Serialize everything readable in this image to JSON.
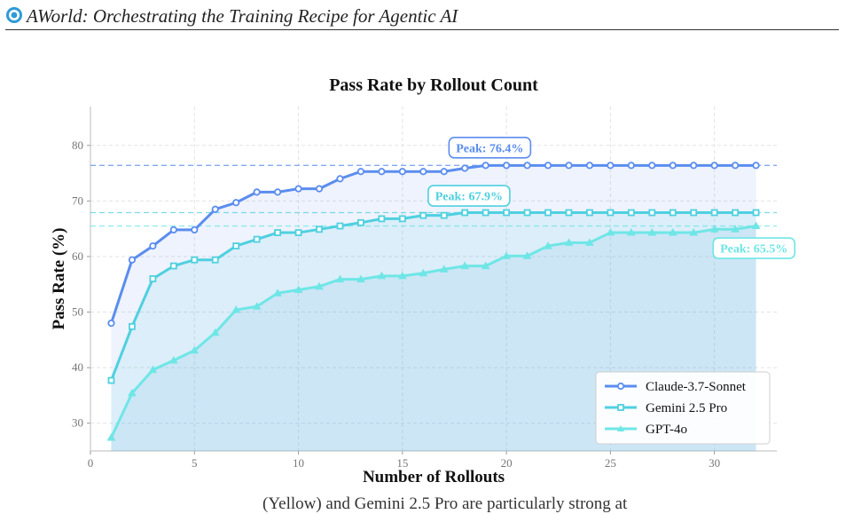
{
  "header": {
    "title": "AWorld: Orchestrating the Training Recipe for Agentic AI"
  },
  "footer_fragment": "(Yellow) and Gemini 2.5 Pro are particularly strong at",
  "colors": {
    "claude": "#5b8def",
    "gemini": "#4fd0e0",
    "gpt": "#6fe6e6",
    "logo": "#2f9bd6"
  },
  "chart_data": {
    "type": "line",
    "title": "Pass Rate by Rollout Count",
    "xlabel": "Number of Rollouts",
    "ylabel": "Pass Rate (%)",
    "xlim": [
      0,
      33
    ],
    "ylim": [
      25,
      87
    ],
    "xticks": [
      0,
      5,
      10,
      15,
      20,
      25,
      30
    ],
    "yticks": [
      30,
      40,
      50,
      60,
      70,
      80
    ],
    "grid": true,
    "legend": "bottom-right",
    "x": [
      1,
      2,
      3,
      4,
      5,
      6,
      7,
      8,
      9,
      10,
      11,
      12,
      13,
      14,
      15,
      16,
      17,
      18,
      19,
      20,
      21,
      22,
      23,
      24,
      25,
      26,
      27,
      28,
      29,
      30,
      31,
      32
    ],
    "series": [
      {
        "name": "Claude-3.7-Sonnet",
        "marker": "circle",
        "color": "#5b8def",
        "values": [
          48.0,
          59.4,
          61.9,
          64.8,
          64.8,
          68.5,
          69.7,
          71.6,
          71.6,
          72.2,
          72.2,
          74.0,
          75.3,
          75.3,
          75.3,
          75.3,
          75.3,
          75.9,
          76.4,
          76.4,
          76.4,
          76.4,
          76.4,
          76.4,
          76.4,
          76.4,
          76.4,
          76.4,
          76.4,
          76.4,
          76.4,
          76.4
        ],
        "peak": 76.4,
        "peak_label": "Peak: 76.4%"
      },
      {
        "name": "Gemini 2.5 Pro",
        "marker": "square",
        "color": "#4fd0e0",
        "values": [
          37.7,
          47.4,
          56.0,
          58.3,
          59.4,
          59.4,
          61.9,
          63.1,
          64.3,
          64.3,
          64.9,
          65.5,
          66.1,
          66.8,
          66.8,
          67.4,
          67.4,
          67.9,
          67.9,
          67.9,
          67.9,
          67.9,
          67.9,
          67.9,
          67.9,
          67.9,
          67.9,
          67.9,
          67.9,
          67.9,
          67.9,
          67.9
        ],
        "peak": 67.9,
        "peak_label": "Peak: 67.9%"
      },
      {
        "name": "GPT-4o",
        "marker": "triangle",
        "color": "#6fe6e6",
        "values": [
          27.4,
          35.4,
          39.6,
          41.3,
          43.1,
          46.3,
          50.4,
          51.0,
          53.4,
          54.0,
          54.6,
          55.9,
          55.9,
          56.5,
          56.5,
          57.0,
          57.7,
          58.3,
          58.3,
          60.1,
          60.1,
          61.9,
          62.5,
          62.5,
          64.3,
          64.3,
          64.3,
          64.3,
          64.3,
          64.9,
          64.9,
          65.5
        ],
        "peak": 65.5,
        "peak_label": "Peak: 65.5%"
      }
    ]
  }
}
